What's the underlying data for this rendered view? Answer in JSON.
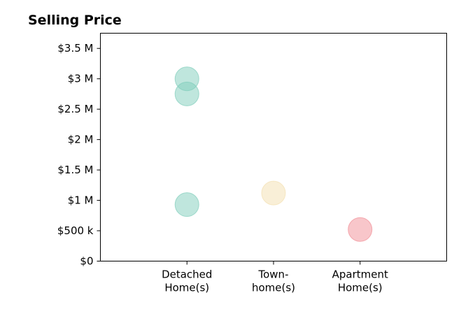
{
  "chart_data": {
    "type": "scatter",
    "title": "Selling Price",
    "xlabel": "",
    "ylabel": "",
    "categories": [
      [
        "Detached",
        "Home(s)"
      ],
      [
        "Town-",
        "home(s)"
      ],
      [
        "Apartment",
        "Home(s)"
      ]
    ],
    "xlim": [
      -1,
      3
    ],
    "ylim": [
      0,
      3750000
    ],
    "y_ticks": [
      {
        "value": 0,
        "label": "$0"
      },
      {
        "value": 500000,
        "label": "$500 k"
      },
      {
        "value": 1000000,
        "label": "$1 M"
      },
      {
        "value": 1500000,
        "label": "$1.5 M"
      },
      {
        "value": 2000000,
        "label": "$2 M"
      },
      {
        "value": 2500000,
        "label": "$2.5 M"
      },
      {
        "value": 3000000,
        "label": "$3 M"
      },
      {
        "value": 3500000,
        "label": "$3.5 M"
      }
    ],
    "grid": false,
    "legend": "none",
    "points": [
      {
        "category": 0,
        "value": 3000000,
        "color": "#7fcdbb"
      },
      {
        "category": 0,
        "value": 2750000,
        "color": "#7fcdbb"
      },
      {
        "category": 0,
        "value": 930000,
        "color": "#7fcdbb"
      },
      {
        "category": 1,
        "value": 1120000,
        "color": "#f3dfb0"
      },
      {
        "category": 2,
        "value": 520000,
        "color": "#f18d96"
      }
    ],
    "point_opacity": 0.5
  }
}
